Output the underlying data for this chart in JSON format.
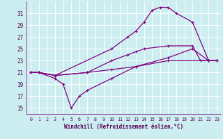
{
  "xlabel": "Windchill (Refroidissement éolien,°C)",
  "bg_color": "#cceef0",
  "line_color": "#800080",
  "grid_color": "#ffffff",
  "xlim": [
    -0.5,
    23.5
  ],
  "ylim": [
    14,
    33
  ],
  "yticks": [
    15,
    17,
    19,
    21,
    23,
    25,
    27,
    29,
    31
  ],
  "xticks": [
    0,
    1,
    2,
    3,
    4,
    5,
    6,
    7,
    8,
    9,
    10,
    11,
    12,
    13,
    14,
    15,
    16,
    17,
    18,
    19,
    20,
    21,
    22,
    23
  ],
  "lines": [
    {
      "x": [
        0,
        1,
        3,
        4,
        5,
        6,
        7,
        10,
        13,
        17,
        22,
        23
      ],
      "y": [
        21,
        21,
        20,
        19,
        15,
        17,
        18,
        20,
        22,
        23,
        23,
        23
      ]
    },
    {
      "x": [
        0,
        1,
        3,
        7,
        10,
        12,
        13,
        14,
        17,
        20,
        21,
        22,
        23
      ],
      "y": [
        21,
        21,
        20.5,
        21,
        23,
        24,
        24.5,
        25,
        25.5,
        25.5,
        23,
        23,
        23
      ]
    },
    {
      "x": [
        0,
        1,
        3,
        10,
        12,
        13,
        14,
        15,
        16,
        17,
        18,
        20,
        22,
        23
      ],
      "y": [
        21,
        21,
        20.5,
        25,
        27,
        28,
        29.5,
        31.5,
        32,
        32,
        31,
        29.5,
        23,
        23
      ]
    },
    {
      "x": [
        0,
        1,
        3,
        7,
        10,
        13,
        17,
        20,
        22,
        23
      ],
      "y": [
        21,
        21,
        20.5,
        21,
        21.5,
        22,
        23.5,
        25,
        23,
        23
      ]
    }
  ]
}
